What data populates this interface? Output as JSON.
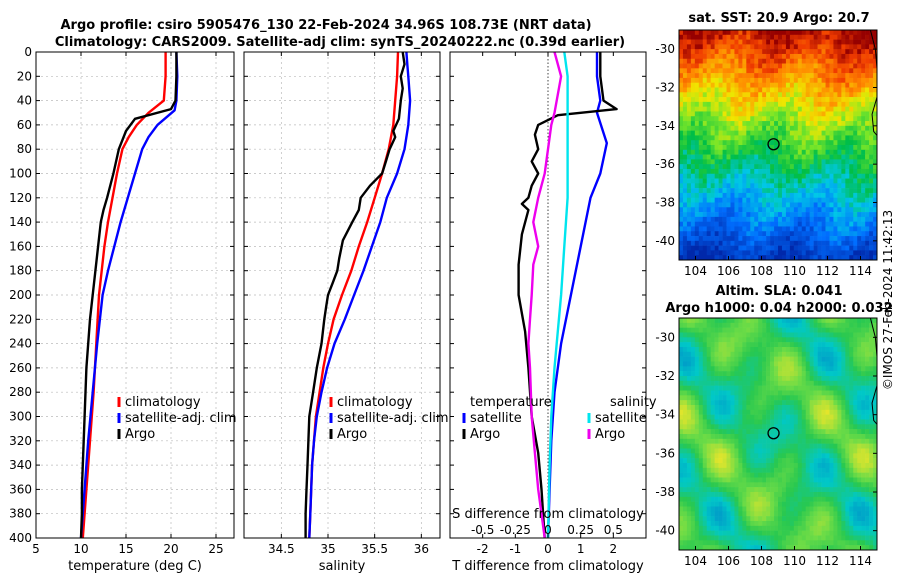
{
  "figure": {
    "title_line1": "Argo profile: csiro 5905476_130 22-Feb-2024 34.96S 108.73E (NRT data)",
    "title_line2": "Climatology: CARS2009. Satellite-adj clim: synTS_20240222.nc (0.39d earlier)",
    "watermark": "©IMOS 27-Feb-2024 11:42:13"
  },
  "colors": {
    "climatology": "#ff0000",
    "satellite": "#0000ff",
    "argo": "#000000",
    "sat_salinity": "#00e5ee",
    "argo_salinity": "#ee00ee"
  },
  "chart_data": [
    {
      "type": "line",
      "id": "temperature",
      "title": "",
      "xlabel": "temperature (deg C)",
      "ylabel": "",
      "xlim": [
        5,
        27
      ],
      "ylim": [
        400,
        0
      ],
      "xticks": [
        5,
        10,
        15,
        20,
        25
      ],
      "yticks": [
        0,
        20,
        40,
        60,
        80,
        100,
        120,
        140,
        160,
        180,
        200,
        220,
        240,
        260,
        280,
        300,
        320,
        340,
        360,
        380,
        400
      ],
      "grid": true,
      "legend": {
        "position": "lower-right",
        "entries": [
          "climatology",
          "satellite-adj. clim",
          "Argo"
        ]
      },
      "series": [
        {
          "name": "climatology",
          "color": "#ff0000",
          "points": [
            [
              19.4,
              0
            ],
            [
              19.4,
              20
            ],
            [
              19.2,
              40
            ],
            [
              17.5,
              50
            ],
            [
              16.2,
              60
            ],
            [
              15.3,
              70
            ],
            [
              14.6,
              80
            ],
            [
              14.0,
              100
            ],
            [
              13.5,
              120
            ],
            [
              13.0,
              140
            ],
            [
              12.6,
              160
            ],
            [
              12.3,
              180
            ],
            [
              12.0,
              200
            ],
            [
              11.7,
              240
            ],
            [
              11.4,
              280
            ],
            [
              11.0,
              320
            ],
            [
              10.6,
              360
            ],
            [
              10.2,
              400
            ]
          ]
        },
        {
          "name": "satellite-adj. clim",
          "color": "#0000ff",
          "points": [
            [
              20.6,
              0
            ],
            [
              20.7,
              20
            ],
            [
              20.6,
              40
            ],
            [
              20.4,
              48
            ],
            [
              18.5,
              60
            ],
            [
              17.5,
              70
            ],
            [
              16.8,
              80
            ],
            [
              16.0,
              100
            ],
            [
              15.2,
              120
            ],
            [
              14.4,
              140
            ],
            [
              13.7,
              160
            ],
            [
              13.0,
              180
            ],
            [
              12.4,
              200
            ],
            [
              11.8,
              240
            ],
            [
              11.3,
              280
            ],
            [
              10.8,
              320
            ],
            [
              10.4,
              360
            ],
            [
              10.0,
              400
            ]
          ]
        },
        {
          "name": "Argo",
          "color": "#000000",
          "points": [
            [
              20.6,
              0
            ],
            [
              20.6,
              20
            ],
            [
              20.5,
              40
            ],
            [
              20.0,
              47
            ],
            [
              16.0,
              55
            ],
            [
              15.0,
              65
            ],
            [
              14.2,
              80
            ],
            [
              13.6,
              100
            ],
            [
              12.9,
              120
            ],
            [
              12.5,
              130
            ],
            [
              12.2,
              140
            ],
            [
              11.9,
              160
            ],
            [
              11.6,
              180
            ],
            [
              11.3,
              200
            ],
            [
              11.0,
              220
            ],
            [
              10.8,
              240
            ],
            [
              10.6,
              260
            ],
            [
              10.5,
              280
            ],
            [
              10.4,
              300
            ],
            [
              10.3,
              320
            ],
            [
              10.2,
              340
            ],
            [
              10.1,
              360
            ],
            [
              10.1,
              380
            ],
            [
              10.0,
              400
            ]
          ]
        }
      ]
    },
    {
      "type": "line",
      "id": "salinity",
      "xlabel": "salinity",
      "xlim": [
        34.1,
        36.2
      ],
      "ylim": [
        400,
        0
      ],
      "xticks": [
        34.5,
        35,
        35.5,
        36
      ],
      "grid": true,
      "legend": {
        "position": "lower-right",
        "entries": [
          "climatology",
          "satellite-adj. clim",
          "Argo"
        ]
      },
      "series": [
        {
          "name": "climatology",
          "color": "#ff0000",
          "points": [
            [
              35.75,
              0
            ],
            [
              35.74,
              20
            ],
            [
              35.72,
              40
            ],
            [
              35.7,
              60
            ],
            [
              35.65,
              80
            ],
            [
              35.58,
              100
            ],
            [
              35.5,
              120
            ],
            [
              35.42,
              140
            ],
            [
              35.33,
              160
            ],
            [
              35.25,
              180
            ],
            [
              35.15,
              200
            ],
            [
              35.06,
              220
            ],
            [
              35.0,
              240
            ],
            [
              34.95,
              260
            ],
            [
              34.91,
              280
            ],
            [
              34.87,
              300
            ],
            [
              34.85,
              320
            ],
            [
              34.83,
              340
            ],
            [
              34.82,
              360
            ],
            [
              34.81,
              380
            ],
            [
              34.8,
              400
            ]
          ]
        },
        {
          "name": "satellite-adj. clim",
          "color": "#0000ff",
          "points": [
            [
              35.84,
              0
            ],
            [
              35.85,
              10
            ],
            [
              35.86,
              20
            ],
            [
              35.88,
              40
            ],
            [
              35.86,
              60
            ],
            [
              35.82,
              80
            ],
            [
              35.74,
              100
            ],
            [
              35.63,
              120
            ],
            [
              35.56,
              140
            ],
            [
              35.47,
              160
            ],
            [
              35.38,
              180
            ],
            [
              35.28,
              200
            ],
            [
              35.18,
              220
            ],
            [
              35.07,
              240
            ],
            [
              34.99,
              260
            ],
            [
              34.93,
              280
            ],
            [
              34.88,
              300
            ],
            [
              34.85,
              320
            ],
            [
              34.83,
              340
            ],
            [
              34.82,
              360
            ],
            [
              34.81,
              380
            ],
            [
              34.8,
              400
            ]
          ]
        },
        {
          "name": "Argo",
          "color": "#000000",
          "points": [
            [
              35.8,
              0
            ],
            [
              35.82,
              10
            ],
            [
              35.78,
              20
            ],
            [
              35.8,
              30
            ],
            [
              35.78,
              40
            ],
            [
              35.76,
              55
            ],
            [
              35.7,
              65
            ],
            [
              35.72,
              70
            ],
            [
              35.66,
              80
            ],
            [
              35.62,
              90
            ],
            [
              35.58,
              100
            ],
            [
              35.45,
              110
            ],
            [
              35.35,
              120
            ],
            [
              35.33,
              130
            ],
            [
              35.26,
              140
            ],
            [
              35.16,
              155
            ],
            [
              35.12,
              170
            ],
            [
              35.1,
              180
            ],
            [
              35.05,
              190
            ],
            [
              35.0,
              200
            ],
            [
              34.98,
              210
            ],
            [
              34.96,
              220
            ],
            [
              34.93,
              240
            ],
            [
              34.88,
              260
            ],
            [
              34.84,
              280
            ],
            [
              34.8,
              300
            ],
            [
              34.79,
              320
            ],
            [
              34.78,
              340
            ],
            [
              34.77,
              360
            ],
            [
              34.76,
              380
            ],
            [
              34.76,
              400
            ]
          ]
        }
      ]
    },
    {
      "type": "line",
      "id": "difference",
      "xlabel": "T difference from climatology",
      "x2label": "S difference from climatology",
      "xlim": [
        -3,
        3
      ],
      "ylim": [
        400,
        0
      ],
      "xticks": [
        -2,
        -1,
        0,
        1,
        2
      ],
      "xtick_labels": [
        "-2",
        "-1",
        "0",
        "1",
        "2"
      ],
      "x2ticks": [
        -2,
        -1,
        0,
        1,
        2
      ],
      "x2tick_labels": [
        "-0.5",
        "-0.25",
        "0",
        "0.25",
        "0.5"
      ],
      "grid": false,
      "zero_line": true,
      "legend": {
        "temperature_header": "temperature",
        "salinity_header": "salinity",
        "temperature_entries": [
          "satellite",
          "Argo"
        ],
        "salinity_entries": [
          "satellite",
          "Argo"
        ]
      },
      "series": [
        {
          "name": "T satellite",
          "color": "#0000ff",
          "points": [
            [
              1.5,
              0
            ],
            [
              1.5,
              20
            ],
            [
              1.6,
              40
            ],
            [
              1.5,
              50
            ],
            [
              1.8,
              75
            ],
            [
              1.6,
              100
            ],
            [
              1.3,
              120
            ],
            [
              1.0,
              160
            ],
            [
              0.7,
              200
            ],
            [
              0.4,
              240
            ],
            [
              0.2,
              280
            ],
            [
              0.1,
              320
            ],
            [
              0.05,
              360
            ],
            [
              0.0,
              400
            ]
          ]
        },
        {
          "name": "T Argo",
          "color": "#000000",
          "points": [
            [
              1.6,
              0
            ],
            [
              1.6,
              20
            ],
            [
              1.7,
              40
            ],
            [
              2.1,
              47
            ],
            [
              0.3,
              52
            ],
            [
              -0.3,
              60
            ],
            [
              -0.4,
              68
            ],
            [
              -0.3,
              80
            ],
            [
              -0.5,
              90
            ],
            [
              -0.3,
              100
            ],
            [
              -0.5,
              110
            ],
            [
              -0.6,
              120
            ],
            [
              -0.8,
              125
            ],
            [
              -0.6,
              130
            ],
            [
              -0.8,
              150
            ],
            [
              -0.9,
              175
            ],
            [
              -0.9,
              200
            ],
            [
              -0.7,
              230
            ],
            [
              -0.6,
              260
            ],
            [
              -0.5,
              300
            ],
            [
              -0.3,
              330
            ],
            [
              -0.2,
              360
            ],
            [
              -0.15,
              380
            ],
            [
              -0.1,
              400
            ]
          ]
        },
        {
          "name": "S satellite",
          "color": "#00e5ee",
          "points": [
            [
              0.5,
              0
            ],
            [
              0.6,
              20
            ],
            [
              0.6,
              50
            ],
            [
              0.6,
              80
            ],
            [
              0.6,
              120
            ],
            [
              0.5,
              160
            ],
            [
              0.4,
              200
            ],
            [
              0.3,
              230
            ],
            [
              0.2,
              260
            ],
            [
              0.1,
              300
            ],
            [
              0.05,
              340
            ],
            [
              0.0,
              400
            ]
          ]
        },
        {
          "name": "S Argo",
          "color": "#ee00ee",
          "points": [
            [
              0.2,
              0
            ],
            [
              0.4,
              20
            ],
            [
              0.2,
              50
            ],
            [
              0.1,
              60
            ],
            [
              0.0,
              80
            ],
            [
              -0.1,
              100
            ],
            [
              -0.3,
              120
            ],
            [
              -0.45,
              140
            ],
            [
              -0.3,
              160
            ],
            [
              -0.45,
              175
            ],
            [
              -0.5,
              200
            ],
            [
              -0.55,
              220
            ],
            [
              -0.6,
              240
            ],
            [
              -0.55,
              260
            ],
            [
              -0.5,
              300
            ],
            [
              -0.4,
              330
            ],
            [
              -0.3,
              360
            ],
            [
              -0.2,
              380
            ],
            [
              -0.1,
              400
            ]
          ]
        }
      ]
    },
    {
      "type": "heatmap",
      "id": "sst-map",
      "title": "sat. SST: 20.9  Argo: 20.7",
      "xlim": [
        103,
        115
      ],
      "ylim": [
        -41,
        -29
      ],
      "xticks": [
        104,
        106,
        108,
        110,
        112,
        114
      ],
      "yticks": [
        -30,
        -32,
        -34,
        -36,
        -38,
        -40
      ],
      "marker": {
        "lon": 108.73,
        "lat": -34.96
      }
    },
    {
      "type": "heatmap",
      "id": "sla-map",
      "title": "Altim. SLA: 0.041",
      "subtitle": "Argo h1000: 0.04 h2000: 0.032",
      "xlim": [
        103,
        115
      ],
      "ylim": [
        -41,
        -29
      ],
      "xticks": [
        104,
        106,
        108,
        110,
        112,
        114
      ],
      "yticks": [
        -30,
        -32,
        -34,
        -36,
        -38,
        -40
      ],
      "marker": {
        "lon": 108.73,
        "lat": -34.96
      }
    }
  ]
}
